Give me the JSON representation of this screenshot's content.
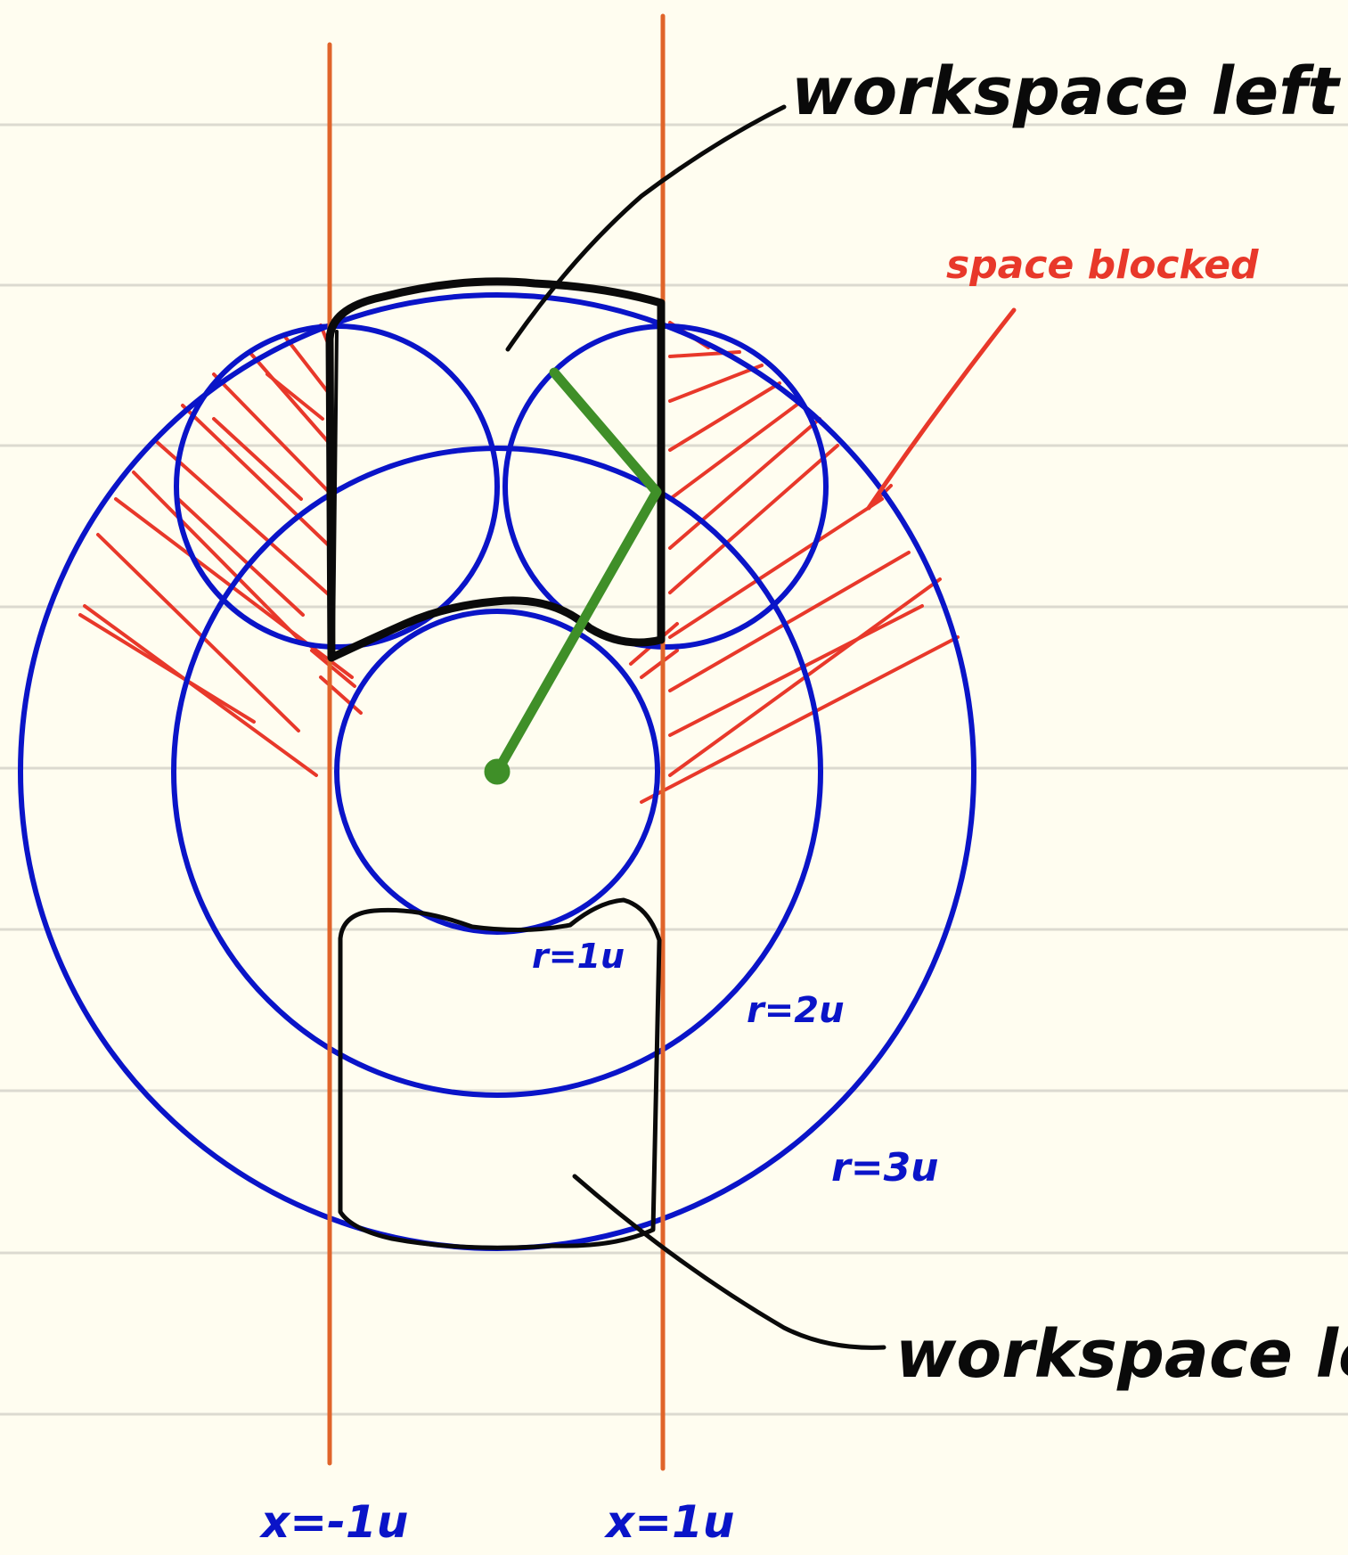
{
  "colors": {
    "paper": "#fffdf0",
    "ruled_line": "#dcdad0",
    "circle": "#0a14c8",
    "boundary": "#e0642a",
    "hatch": "#e8382a",
    "outline": "#0a0a0a",
    "arm": "#3f8f28",
    "annotation_black": "#0a0a0a",
    "annotation_red": "#e8382a",
    "annotation_blue": "#0a14c8"
  },
  "labels": {
    "workspace_top": "workspace left",
    "workspace_bottom": "workspace left",
    "space_blocked": "space blocked",
    "r1": "r=1u",
    "r2": "r=2u",
    "r3": "r=3u",
    "x_left": "x=-1u",
    "x_right": "x=1u"
  }
}
